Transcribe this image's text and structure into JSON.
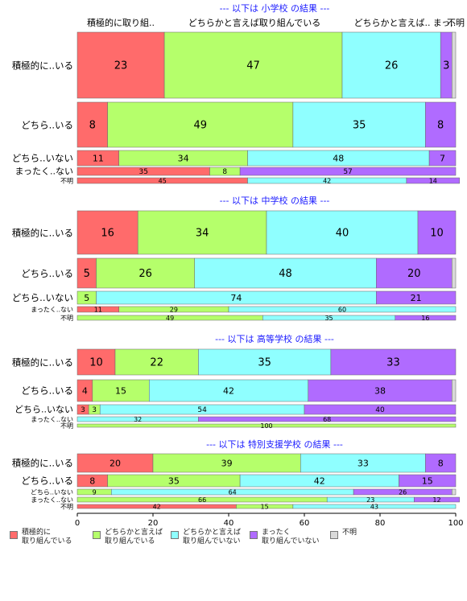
{
  "chart_data": {
    "type": "bar",
    "orientation": "horizontal-stacked",
    "xlim": [
      0,
      100
    ],
    "xticks": [
      "0",
      "20",
      "40",
      "60",
      "80",
      "100"
    ],
    "columns": [
      "積極的に取り組..",
      "どちらかと言えば取り組んでいる",
      "どちらかと言えば..",
      "まっ..",
      "不明"
    ],
    "legend": [
      {
        "label": "積極的に\n取り組んでいる",
        "color": "#FF6B6B"
      },
      {
        "label": "どちらかと言えば\n取り組んでいる",
        "color": "#B5FF6B"
      },
      {
        "label": "どちらかと言えば\n取り組んでいない",
        "color": "#8FFFFF"
      },
      {
        "label": "まったく\n取り組んでいない",
        "color": "#B06BFF"
      },
      {
        "label": "不明",
        "color": "#D9D9D9"
      }
    ],
    "groups": [
      {
        "title": "--- 以下は 小学校 の結果 ---",
        "rows": [
          {
            "label": "積極的に..いる",
            "values": [
              23,
              47,
              26,
              3,
              1
            ],
            "labels": [
              "23",
              "47",
              "26",
              "3",
              ""
            ]
          },
          {
            "label": "どちら..いる",
            "values": [
              8,
              49,
              35,
              8,
              0
            ],
            "labels": [
              "8",
              "49",
              "35",
              "8",
              ""
            ]
          },
          {
            "label": "どちら..いない",
            "values": [
              11,
              34,
              48,
              7,
              0
            ],
            "labels": [
              "11",
              "34",
              "48",
              "7",
              ""
            ]
          },
          {
            "label": "まったく..ない",
            "values": [
              35,
              8,
              0,
              57,
              0
            ],
            "labels": [
              "35",
              "8",
              "",
              "57",
              ""
            ]
          },
          {
            "label": "不明",
            "values": [
              45,
              0,
              42,
              14,
              0
            ],
            "labels": [
              "45",
              "",
              "42",
              "14",
              ""
            ]
          }
        ]
      },
      {
        "title": "--- 以下は 中学校 の結果 ---",
        "rows": [
          {
            "label": "積極的に..いる",
            "values": [
              16,
              34,
              40,
              10,
              0
            ],
            "labels": [
              "16",
              "34",
              "40",
              "10",
              ""
            ]
          },
          {
            "label": "どちら..いる",
            "values": [
              5,
              26,
              48,
              20,
              1
            ],
            "labels": [
              "5",
              "26",
              "48",
              "20",
              ""
            ]
          },
          {
            "label": "どちら..いない",
            "values": [
              0,
              5,
              74,
              21,
              0
            ],
            "labels": [
              "",
              "5",
              "74",
              "21",
              ""
            ]
          },
          {
            "label": "まったく..ない",
            "values": [
              11,
              29,
              60,
              0,
              0
            ],
            "labels": [
              "11",
              "29",
              "60",
              "",
              ""
            ]
          },
          {
            "label": "不明",
            "values": [
              0,
              49,
              35,
              16,
              0
            ],
            "labels": [
              "",
              "49",
              "35",
              "16",
              ""
            ]
          }
        ]
      },
      {
        "title": "--- 以下は 高等学校 の結果 ---",
        "rows": [
          {
            "label": "積極的に..いる",
            "values": [
              10,
              22,
              35,
              33,
              0
            ],
            "labels": [
              "10",
              "22",
              "35",
              "33",
              ""
            ]
          },
          {
            "label": "どちら..いる",
            "values": [
              4,
              15,
              42,
              38,
              1
            ],
            "labels": [
              "4",
              "15",
              "42",
              "38",
              ""
            ]
          },
          {
            "label": "どちら..いない",
            "values": [
              3,
              3,
              54,
              40,
              0
            ],
            "labels": [
              "3",
              "3",
              "54",
              "40",
              ""
            ]
          },
          {
            "label": "まったく..ない",
            "values": [
              0,
              0,
              32,
              68,
              0
            ],
            "labels": [
              "",
              "",
              "32",
              "68",
              ""
            ]
          },
          {
            "label": "不明",
            "values": [
              0,
              100,
              0,
              0,
              0
            ],
            "labels": [
              "",
              "100",
              "",
              "",
              ""
            ]
          }
        ]
      },
      {
        "title": "--- 以下は 特別支援学校 の結果 ---",
        "rows": [
          {
            "label": "積極的に..いる",
            "values": [
              20,
              39,
              33,
              8,
              0
            ],
            "labels": [
              "20",
              "39",
              "33",
              "8",
              ""
            ]
          },
          {
            "label": "どちら..いる",
            "values": [
              8,
              35,
              42,
              15,
              0
            ],
            "labels": [
              "8",
              "35",
              "42",
              "15",
              ""
            ]
          },
          {
            "label": "どちら..いない",
            "values": [
              0,
              9,
              64,
              26,
              1
            ],
            "labels": [
              "",
              "9",
              "64",
              "26",
              ""
            ]
          },
          {
            "label": "まったく..ない",
            "values": [
              0,
              66,
              23,
              12,
              0
            ],
            "labels": [
              "",
              "66",
              "23",
              "12",
              ""
            ]
          },
          {
            "label": "不明",
            "values": [
              42,
              15,
              43,
              0,
              0
            ],
            "labels": [
              "42",
              "15",
              "43",
              "",
              ""
            ]
          }
        ]
      }
    ]
  }
}
